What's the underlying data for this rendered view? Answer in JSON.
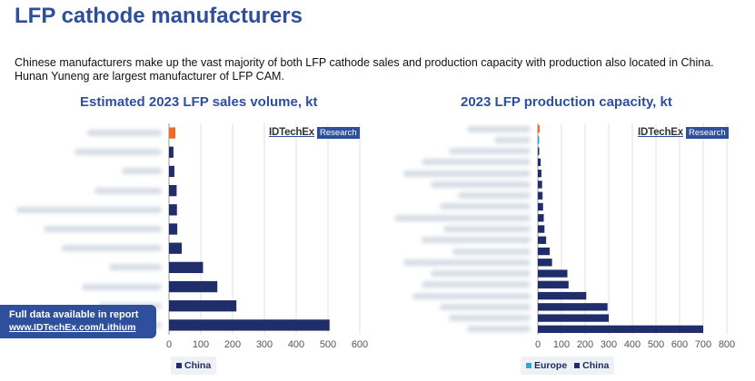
{
  "page": {
    "title": "LFP cathode manufacturers",
    "intro": "Chinese manufacturers make up the vast majority of both LFP cathode sales and production capacity with production also located in China. Hunan Yuneng are largest manufacturer of LFP CAM."
  },
  "logo": {
    "main": "IDTechEx",
    "sub": "Research"
  },
  "banner": {
    "line1": "Full data available in report",
    "line2": "www.IDTechEx.com/Lithium"
  },
  "colors": {
    "china": "#1f2d6b",
    "europe": "#29a9d9",
    "highlight": "#ef6c22",
    "accent": "#2e4f9c"
  },
  "chart_data": [
    {
      "type": "bar",
      "orientation": "horizontal",
      "title": "Estimated 2023 LFP sales volume, kt",
      "categories_visible": false,
      "xlim": [
        0,
        600
      ],
      "xticks": [
        0,
        100,
        200,
        300,
        400,
        500,
        600
      ],
      "grid": true,
      "legend_position": "bottom-left",
      "series": [
        {
          "name": "China",
          "values": [
            20,
            14,
            17,
            24,
            25,
            26,
            40,
            107,
            152,
            212,
            505
          ],
          "highlight_index": 0
        }
      ]
    },
    {
      "type": "bar",
      "orientation": "horizontal",
      "title": "2023 LFP production capacity, kt",
      "categories_visible": false,
      "xlim": [
        0,
        800
      ],
      "xticks": [
        0,
        100,
        200,
        300,
        400,
        500,
        600,
        700,
        800
      ],
      "grid": true,
      "legend_position": "bottom-left",
      "series": [
        {
          "name": "Europe",
          "values": [
            0,
            4,
            0,
            0,
            0,
            0,
            0,
            0,
            0,
            0,
            0,
            0,
            0,
            0,
            0,
            0,
            0,
            0,
            0
          ]
        },
        {
          "name": "China",
          "values": [
            0,
            0,
            3,
            12,
            15,
            18,
            20,
            22,
            25,
            28,
            35,
            50,
            60,
            125,
            130,
            205,
            295,
            300,
            700
          ]
        }
      ],
      "highlight_bar": {
        "index": 0,
        "value": 8
      }
    }
  ]
}
